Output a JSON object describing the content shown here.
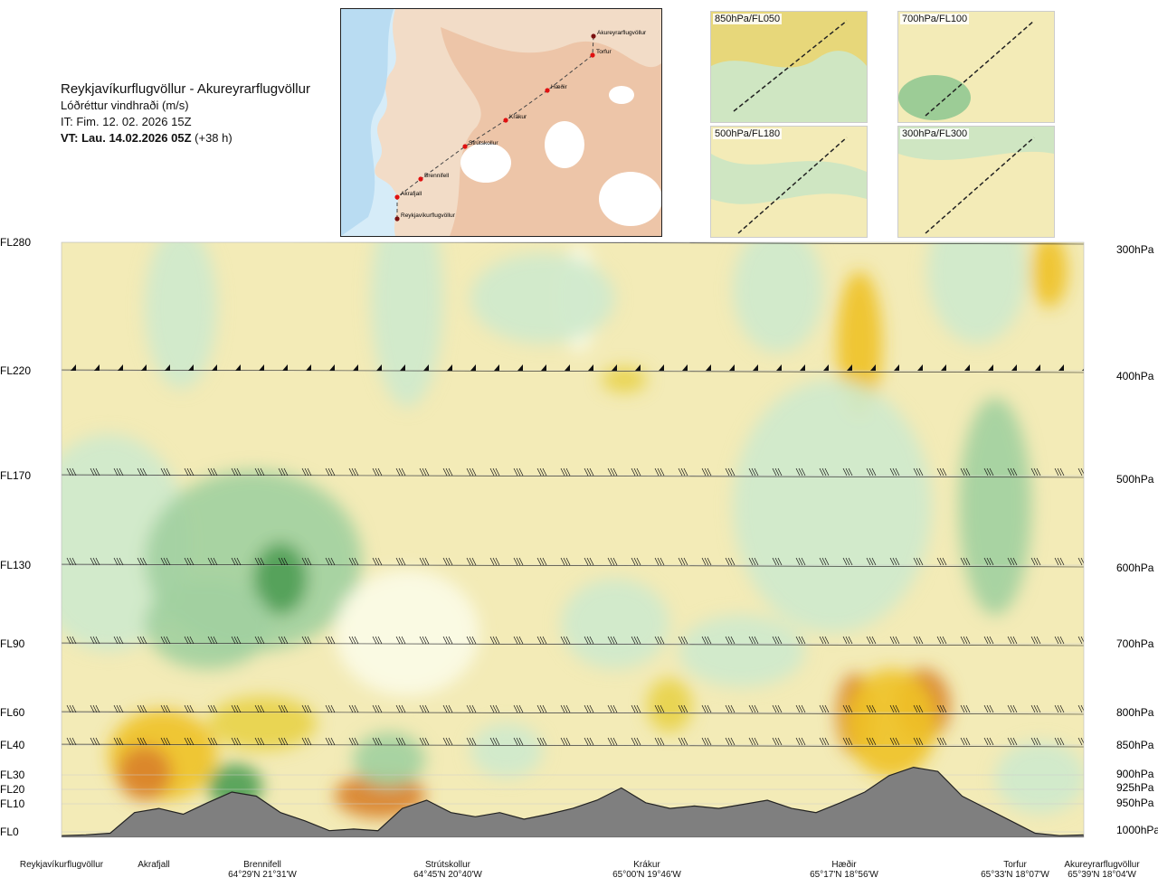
{
  "header": {
    "route": "Reykjavíkurflugvöllur - Akureyrarflugvöllur",
    "subtitle": "Lóðréttur vindhraði (m/s)",
    "init_time": "IT: Fim. 12. 02. 2026 15Z",
    "valid_time": "VT: Lau. 14.02.2026 05Z",
    "lead": "(+38 h)"
  },
  "map": {
    "waypoints": [
      "Akureyrarflugvöllur",
      "Torfur",
      "Hæðir",
      "Krákur",
      "Strútskollur",
      "Brennifell",
      "Akrafjall",
      "Reykjavíkurflugvöllur"
    ]
  },
  "thumbnails": [
    {
      "label": "850hPa/FL050"
    },
    {
      "label": "700hPa/FL100"
    },
    {
      "label": "500hPa/FL180"
    },
    {
      "label": "300hPa/FL300"
    }
  ],
  "chart_data": {
    "type": "heatmap",
    "title": "Lóðréttur vindhraði (m/s)",
    "levels": [
      {
        "fl": "FL280",
        "hpa": "300hPa"
      },
      {
        "fl": "FL220",
        "hpa": "400hPa"
      },
      {
        "fl": "FL170",
        "hpa": "500hPa"
      },
      {
        "fl": "FL130",
        "hpa": "600hPa"
      },
      {
        "fl": "FL90",
        "hpa": "700hPa"
      },
      {
        "fl": "FL60",
        "hpa": "800hPa"
      },
      {
        "fl": "FL40",
        "hpa": "850hPa"
      },
      {
        "fl": "FL30",
        "hpa": "900hPa"
      },
      {
        "fl": "FL20",
        "hpa": "925hPa"
      },
      {
        "fl": "FL10",
        "hpa": "950hPa"
      },
      {
        "fl": "FL0",
        "hpa": "1000hPa"
      }
    ],
    "locations": [
      {
        "name": "Reykjavíkurflugvöllur",
        "coord": ""
      },
      {
        "name": "Akrafjall",
        "coord": ""
      },
      {
        "name": "Brennifell",
        "coord": "64°29'N 21°31'W"
      },
      {
        "name": "Strútskollur",
        "coord": "64°45'N 20°40'W"
      },
      {
        "name": "Krákur",
        "coord": "65°00'N 19°46'W"
      },
      {
        "name": "Hæðir",
        "coord": "65°17'N 18°56'W"
      },
      {
        "name": "Torfur",
        "coord": "65°33'N 18°07'W"
      },
      {
        "name": "Akureyrarflugvöllur",
        "coord": "65°39'N 18°04'W"
      }
    ],
    "terrain_profile": [
      0.02,
      0.03,
      0.05,
      0.3,
      0.35,
      0.28,
      0.42,
      0.55,
      0.5,
      0.3,
      0.2,
      0.08,
      0.1,
      0.08,
      0.35,
      0.45,
      0.3,
      0.25,
      0.3,
      0.22,
      0.28,
      0.35,
      0.45,
      0.6,
      0.42,
      0.35,
      0.38,
      0.35,
      0.4,
      0.45,
      0.35,
      0.3,
      0.42,
      0.55,
      0.75,
      0.85,
      0.8,
      0.5,
      0.35,
      0.2,
      0.05,
      0.02,
      0.03
    ],
    "palette": {
      "down_strong": "#d9822b",
      "down_mod": "#efc227",
      "down_weak": "#e8d24a",
      "neutral_pos": "#f3ebb7",
      "neutral": "#fbfbe6",
      "up_weak": "#cfe9cc",
      "up_mod": "#a2d0a0",
      "up_strong": "#4f9e55",
      "terrain": "#7f7f7f"
    }
  }
}
